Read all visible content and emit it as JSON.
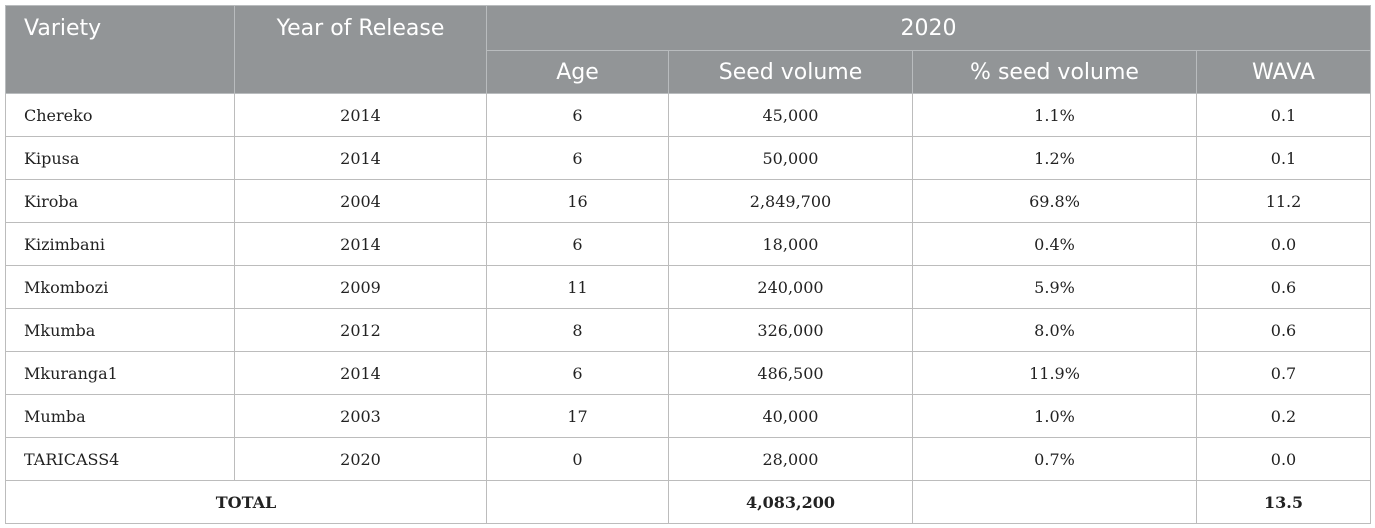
{
  "header": {
    "variety": "Variety",
    "year_of_release": "Year of Release",
    "group": "2020",
    "age": "Age",
    "seed_volume": "Seed volume",
    "pct_seed_volume": "% seed volume",
    "wava": "WAVA"
  },
  "rows": [
    {
      "variety": "Chereko",
      "year": "2014",
      "age": "6",
      "seed_volume": "45,000",
      "pct": "1.1%",
      "wava": "0.1"
    },
    {
      "variety": "Kipusa",
      "year": "2014",
      "age": "6",
      "seed_volume": "50,000",
      "pct": "1.2%",
      "wava": "0.1"
    },
    {
      "variety": "Kiroba",
      "year": "2004",
      "age": "16",
      "seed_volume": "2,849,700",
      "pct": "69.8%",
      "wava": "11.2"
    },
    {
      "variety": "Kizimbani",
      "year": "2014",
      "age": "6",
      "seed_volume": "18,000",
      "pct": "0.4%",
      "wava": "0.0"
    },
    {
      "variety": "Mkombozi",
      "year": "2009",
      "age": "11",
      "seed_volume": "240,000",
      "pct": "5.9%",
      "wava": "0.6"
    },
    {
      "variety": "Mkumba",
      "year": "2012",
      "age": "8",
      "seed_volume": "326,000",
      "pct": "8.0%",
      "wava": "0.6"
    },
    {
      "variety": "Mkuranga1",
      "year": "2014",
      "age": "6",
      "seed_volume": "486,500",
      "pct": "11.9%",
      "wava": "0.7"
    },
    {
      "variety": "Mumba",
      "year": "2003",
      "age": "17",
      "seed_volume": "40,000",
      "pct": "1.0%",
      "wava": "0.2"
    },
    {
      "variety": "TARICASS4",
      "year": "2020",
      "age": "0",
      "seed_volume": "28,000",
      "pct": "0.7%",
      "wava": "0.0"
    }
  ],
  "total": {
    "label": "TOTAL",
    "seed_volume": "4,083,200",
    "wava": "13.5"
  }
}
